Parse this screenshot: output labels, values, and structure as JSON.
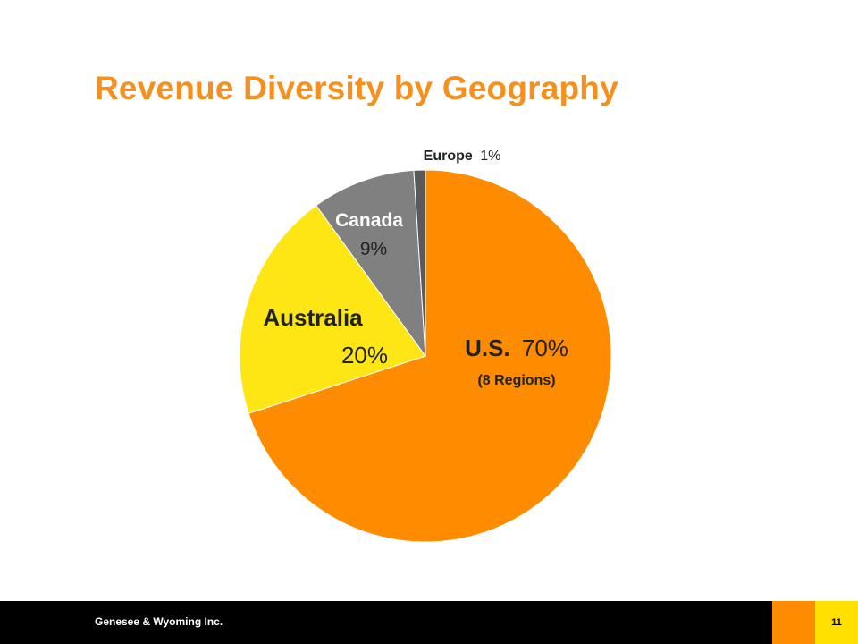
{
  "slide": {
    "title": "Revenue Diversity by Geography",
    "footer_company": "Genesee & Wyoming Inc.",
    "page_number": "11"
  },
  "colors": {
    "title": "#f5901e",
    "footer_bar": "#000000",
    "footer_accent": "#ff8c00",
    "footer_page_box": "#ffe000"
  },
  "chart_data": {
    "type": "pie",
    "title": "",
    "slices": [
      {
        "name": "U.S.",
        "value": 70,
        "value_label": "70%",
        "sublabel": "(8 Regions)",
        "color": "#ff8c00"
      },
      {
        "name": "Australia",
        "value": 20,
        "value_label": "20%",
        "sublabel": "",
        "color": "#fde614"
      },
      {
        "name": "Canada",
        "value": 9,
        "value_label": "9%",
        "sublabel": "",
        "color": "#808080"
      },
      {
        "name": "Europe",
        "value": 1,
        "value_label": "1%",
        "sublabel": "",
        "color": "#5a5a5a"
      }
    ],
    "start_angle": "12 o'clock",
    "direction": "clockwise",
    "legend": "none",
    "labels": "on slices"
  }
}
